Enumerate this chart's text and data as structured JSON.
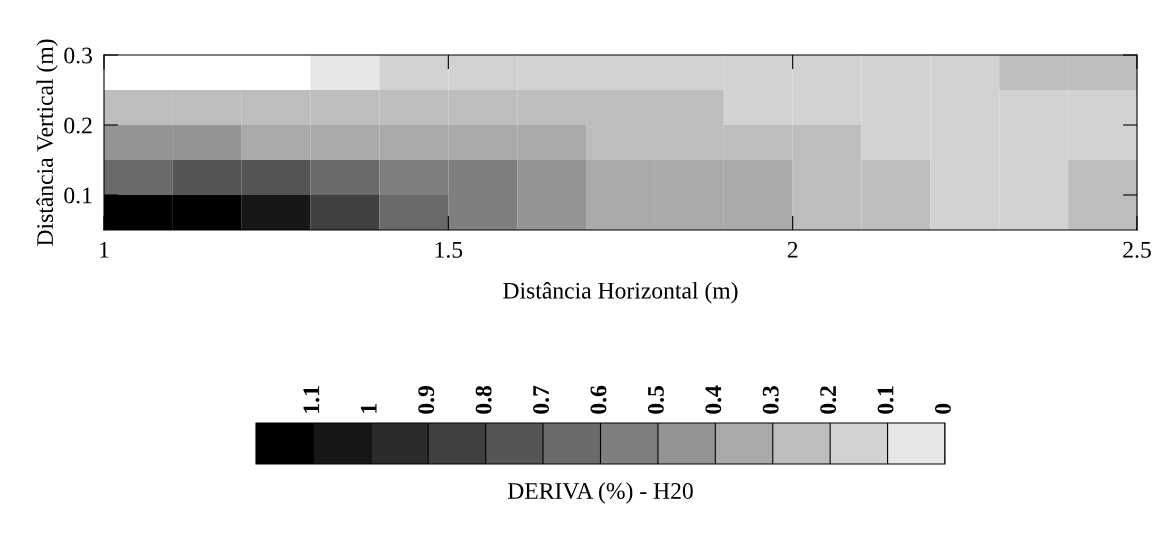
{
  "chart_data": {
    "type": "heatmap",
    "xlabel": "Distância Horizontal (m)",
    "ylabel": "Distância Vertical (m)",
    "clabel": "DERIVA (%) - H20",
    "xlim": [
      1,
      2.5
    ],
    "ylim": [
      0.05,
      0.3
    ],
    "xticks": [
      1,
      1.5,
      2,
      2.5
    ],
    "yticks": [
      0.1,
      0.2,
      0.3
    ],
    "cells": [
      [
        null,
        null,
        null,
        0.05,
        0.15,
        0.15,
        0.15,
        0.15,
        0.15,
        0.15,
        0.15,
        0.15,
        0.15,
        0.25,
        0.25
      ],
      [
        0.25,
        0.25,
        0.25,
        0.25,
        0.25,
        0.25,
        0.25,
        0.25,
        0.25,
        0.15,
        0.15,
        0.15,
        0.15,
        0.15,
        0.15
      ],
      [
        0.45,
        0.45,
        0.35,
        0.35,
        0.35,
        0.35,
        0.35,
        0.25,
        0.25,
        0.25,
        0.25,
        0.15,
        0.15,
        0.15,
        0.15
      ],
      [
        0.65,
        0.75,
        0.75,
        0.65,
        0.55,
        0.55,
        0.45,
        0.35,
        0.35,
        0.35,
        0.25,
        0.25,
        0.15,
        0.15,
        0.25
      ],
      [
        1.15,
        1.15,
        1.05,
        0.85,
        0.65,
        0.55,
        0.45,
        0.35,
        0.35,
        0.35,
        0.25,
        0.25,
        0.15,
        0.15,
        0.25
      ]
    ],
    "clim": [
      1.2,
      0
    ],
    "cticks": [
      1.1,
      1,
      0.9,
      0.8,
      0.7,
      0.6,
      0.5,
      0.4,
      0.3,
      0.2,
      0.1,
      0
    ],
    "colors": [
      "#000000",
      "#171717",
      "#2b2b2b",
      "#404040",
      "#555555",
      "#6a6a6a",
      "#7f7f7f",
      "#949494",
      "#a9a9a9",
      "#bdbdbd",
      "#d2d2d2",
      "#e6e6e6"
    ],
    "grid": false
  }
}
